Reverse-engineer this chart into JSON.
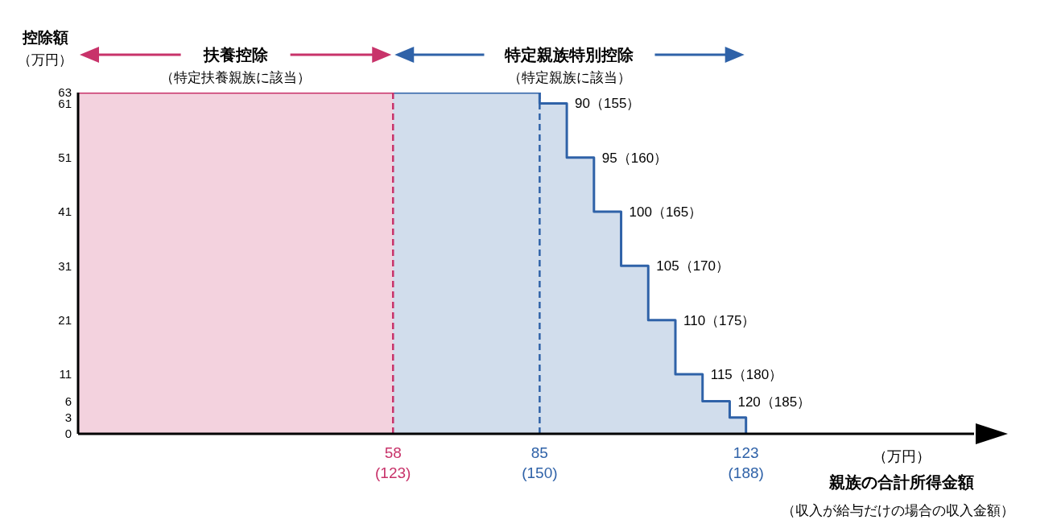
{
  "chart_data": {
    "type": "step",
    "xlabel": "親族の合計所得金額",
    "ylabel": "控除額",
    "annotations": [
      "扶養控除",
      "（特定扶養親族に該当）",
      "特定親族特別控除",
      "（特定親族に該当）",
      "（万円）",
      "（万円）",
      "（収入が給与だけの場合の収入金額）",
      "(123)",
      "(150)",
      "(188)",
      {
        "text": "90（155）",
        "x": 90,
        "y": 61
      },
      {
        "text": "95（160）",
        "x": 95,
        "y": 51
      },
      {
        "text": "100（165）",
        "x": 100,
        "y": 41
      },
      {
        "text": "105（170）",
        "x": 105,
        "y": 31
      },
      {
        "text": "110（175）",
        "x": 110,
        "y": 21
      },
      {
        "text": "115（180）",
        "x": 115,
        "y": 11
      },
      {
        "text": "120（185）",
        "x": 120,
        "y": 6
      }
    ],
    "series": [
      {
        "type": "area",
        "color": "#c8336a",
        "x": [
          0,
          58
        ],
        "values": [
          63,
          63
        ]
      },
      {
        "color": "#2f62a8",
        "x": [
          58,
          85,
          90,
          95,
          100,
          105,
          110,
          115,
          120,
          123
        ],
        "values": [
          63,
          61,
          51,
          41,
          31,
          21,
          11,
          6,
          3,
          0
        ]
      }
    ],
    "xlim": [
      0,
      165
    ],
    "xticks": [
      58,
      85,
      123
    ],
    "ylim": [
      0,
      63
    ],
    "yticks": [
      0,
      3,
      6,
      11,
      21,
      31,
      41,
      51,
      61,
      63
    ],
    "ref_lines": [
      {
        "axis": "x",
        "value": 58,
        "label": null,
        "color": "#c8336a",
        "line_style": "dashed"
      },
      {
        "axis": "x",
        "value": 85,
        "label": null,
        "color": "#2f62a8",
        "line_style": "dashed"
      }
    ],
    "grid": false,
    "legend": false
  }
}
